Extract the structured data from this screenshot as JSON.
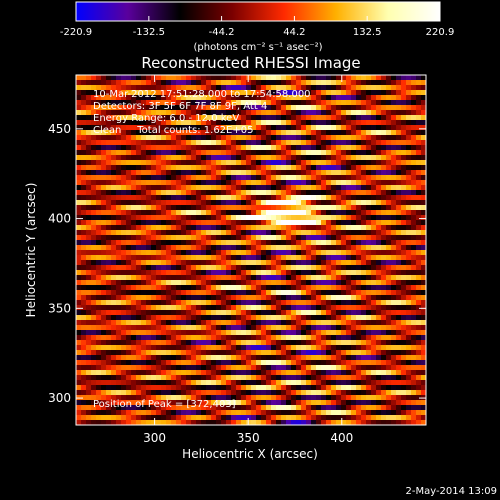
{
  "colorbar": {
    "ticks": [
      "-220.9",
      "-132.5",
      "-44.2",
      "44.2",
      "132.5",
      "220.9"
    ],
    "units_text": "(photons cm⁻² s⁻¹ asec⁻²)"
  },
  "title": "Reconstructed RHESSI Image",
  "annotations": {
    "line1": "10-Mar-2012 17:51:28.000 to 17:54:58.000",
    "line2": "Detectors: 3F 5F 6F 7F 8F 9F, Att 4",
    "line3": "Energy Range: 6.0 - 12.0 keV",
    "line4": "Clean     Total counts: 1.62E+05",
    "peak": "Position of Peak = [372,403]"
  },
  "footer": {
    "timestamp": "2-May-2014 13:09"
  },
  "chart_data": {
    "type": "heatmap",
    "title": "Reconstructed RHESSI Image",
    "xlabel": "Heliocentric X (arcsec)",
    "ylabel": "Heliocentric Y (arcsec)",
    "xlim": [
      258,
      445
    ],
    "ylim": [
      285,
      480
    ],
    "xticks": [
      300,
      350,
      400
    ],
    "yticks": [
      300,
      350,
      400,
      450
    ],
    "colorbar_range": [
      -220.9,
      220.9
    ],
    "peak": {
      "x": 372,
      "y": 403
    },
    "colormap": [
      "#0000ff",
      "#5a009c",
      "#000000",
      "#7a0000",
      "#ff2a00",
      "#ffb000",
      "#ffffb0",
      "#ffffff"
    ]
  }
}
